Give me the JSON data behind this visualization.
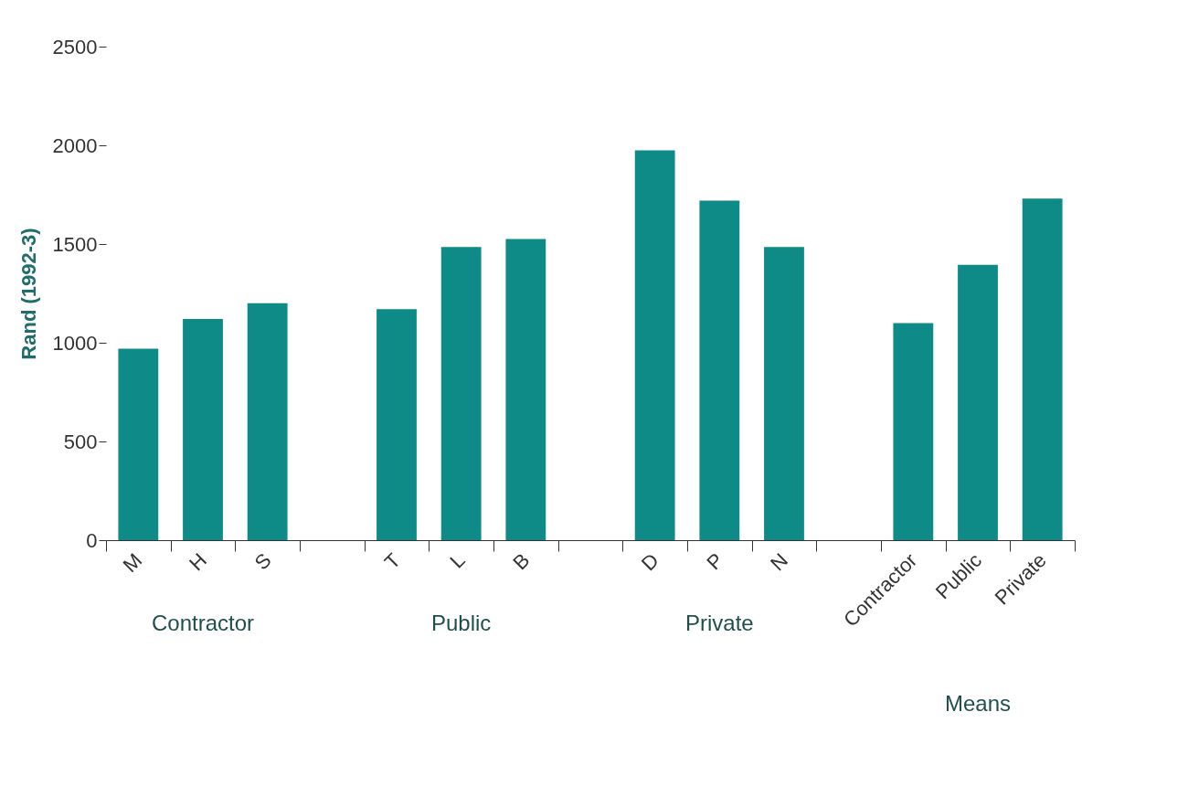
{
  "chart_data": {
    "type": "bar",
    "ylabel": "Rand (1992-3)",
    "categories": [
      "M",
      "H",
      "S",
      null,
      "T",
      "L",
      "B",
      null,
      "D",
      "P",
      "N",
      null,
      "Contractor",
      "Public",
      "Private"
    ],
    "values": [
      970,
      1120,
      1200,
      null,
      1170,
      1485,
      1525,
      null,
      1975,
      1720,
      1485,
      null,
      1100,
      1395,
      1730
    ],
    "color": "#0e8a87",
    "ylim": [
      0,
      2500
    ],
    "yticks": [
      0,
      500,
      1000,
      1500,
      2000,
      2500
    ],
    "grid": false,
    "annotations": [
      "Contractor",
      "Public",
      "Private",
      "Means"
    ]
  }
}
